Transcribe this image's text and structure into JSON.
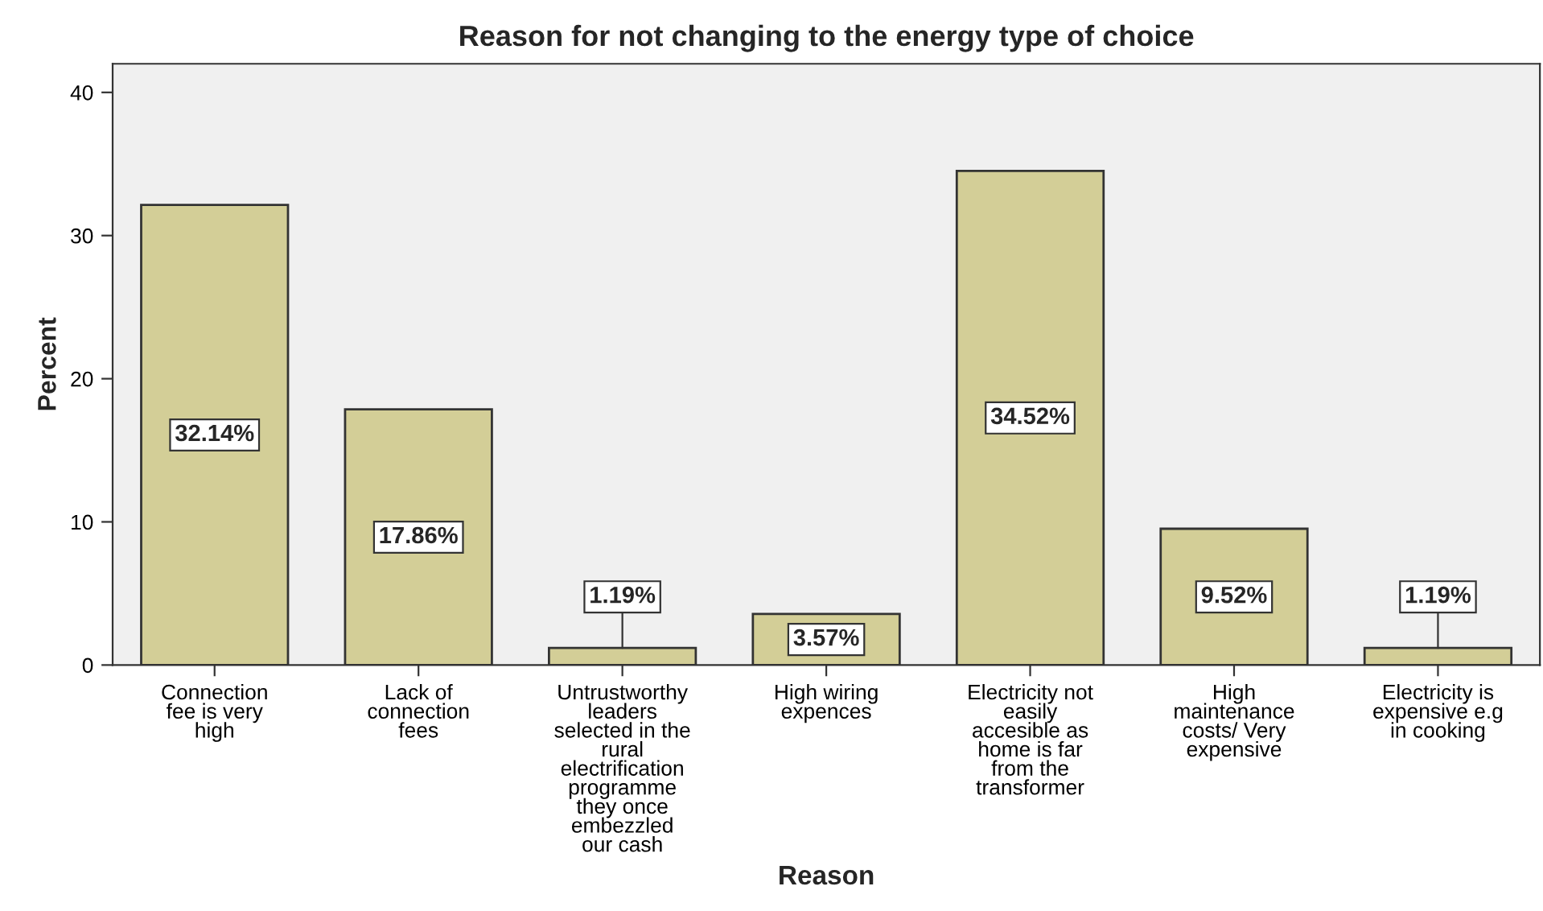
{
  "chart_data": {
    "type": "bar",
    "title": "Reason for not changing to the energy type of choice",
    "xlabel": "Reason",
    "ylabel": "Percent",
    "categories": [
      "Connection\nfee is very\nhigh",
      "Lack of\nconnection\nfees",
      "Untrustworthy\nleaders\nselected in the\nrural\nelectrification\nprogramme\nthey once\nembezzled\nour cash",
      "High wiring\nexpences",
      "Electricity not\neasily\naccesible as\nhome is far\nfrom the\ntransformer",
      "High\nmaintenance\ncosts/ Very\nexpensive",
      "Electricity is\nexpensive e.g\nin cooking"
    ],
    "values": [
      32.14,
      17.86,
      1.19,
      3.57,
      34.52,
      9.52,
      1.19
    ],
    "value_labels": [
      "32.14%",
      "17.86%",
      "1.19%",
      "3.57%",
      "34.52%",
      "9.52%",
      "1.19%"
    ],
    "color": "#d3ce97",
    "ylim": [
      0,
      42
    ],
    "yticks": [
      0,
      10,
      20,
      30,
      40
    ],
    "grid": false
  }
}
